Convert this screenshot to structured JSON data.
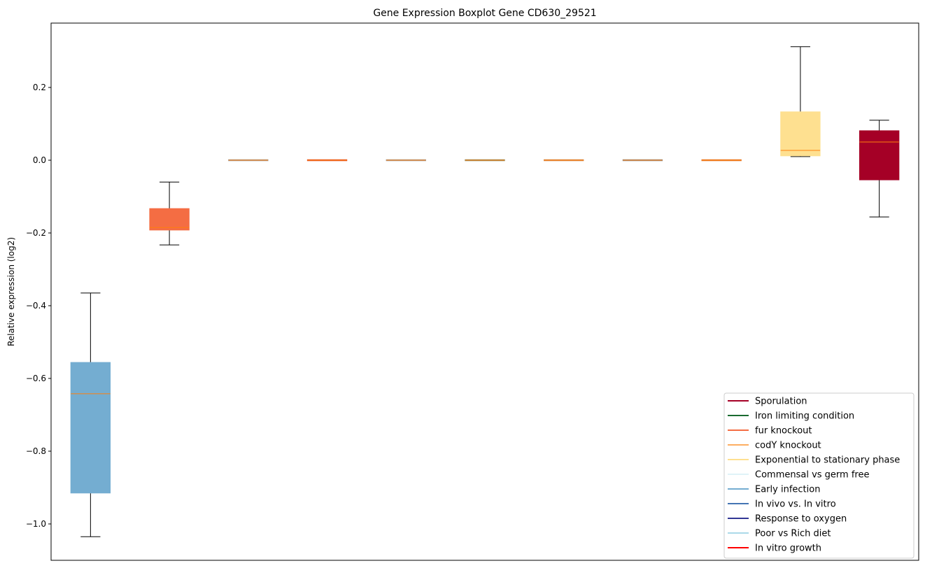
{
  "chart_data": {
    "type": "boxplot",
    "title": "Gene Expression Boxplot Gene CD630_29521",
    "xlabel": "",
    "ylabel": "Relative expression (log2)",
    "ylim": [
      -1.1,
      0.377
    ],
    "xlim": [
      0.5,
      11.5
    ],
    "yticks": [
      0.2,
      0.0,
      -0.2,
      -0.4,
      -0.6,
      -0.8,
      -1.0
    ],
    "ytick_labels": [
      "0.2",
      "0.0",
      "−0.2",
      "−0.4",
      "−0.6",
      "−0.8",
      "−1.0"
    ],
    "grid": false,
    "median_color": "#ff7f0e",
    "boxes": [
      {
        "position": 1,
        "color": "#74add1",
        "whislo": -1.035,
        "q1": -0.915,
        "med": -0.642,
        "q3": -0.556,
        "whishi": -0.365
      },
      {
        "position": 2,
        "color": "#f46d43",
        "whislo": -0.233,
        "q1": -0.192,
        "med": -0.185,
        "q3": -0.133,
        "whishi": -0.06
      },
      {
        "position": 3,
        "color": "#9e9e9e",
        "whislo": 0,
        "q1": 0,
        "med": 0,
        "q3": 0,
        "whishi": 0
      },
      {
        "position": 4,
        "color": "#e0502a",
        "whislo": 0,
        "q1": 0,
        "med": 0,
        "q3": 0,
        "whishi": 0
      },
      {
        "position": 5,
        "color": "#9e9e9e",
        "whislo": 0,
        "q1": 0,
        "med": 0,
        "q3": 0,
        "whishi": 0
      },
      {
        "position": 6,
        "color": "#8a8a60",
        "whislo": 0,
        "q1": 0,
        "med": 0,
        "q3": 0,
        "whishi": 0
      },
      {
        "position": 7,
        "color": "#d08a50",
        "whislo": 0,
        "q1": 0,
        "med": 0,
        "q3": 0,
        "whishi": 0
      },
      {
        "position": 8,
        "color": "#8e8e8e",
        "whislo": 0,
        "q1": 0,
        "med": 0,
        "q3": 0,
        "whishi": 0
      },
      {
        "position": 9,
        "color": "#e07a30",
        "whislo": 0,
        "q1": 0,
        "med": 0,
        "q3": 0,
        "whishi": 0
      },
      {
        "position": 10,
        "color": "#fee090",
        "whislo": 0.01,
        "q1": 0.012,
        "med": 0.027,
        "q3": 0.133,
        "whishi": 0.312
      },
      {
        "position": 11,
        "color": "#a50026",
        "whislo": -0.156,
        "q1": -0.054,
        "med": 0.05,
        "q3": 0.081,
        "whishi": 0.11
      }
    ],
    "legend": {
      "placement": "lower right",
      "entries": [
        {
          "label": "Sporulation",
          "color": "#a50026"
        },
        {
          "label": "Iron limiting condition",
          "color": "#1a6b30"
        },
        {
          "label": "fur knockout",
          "color": "#f46d43"
        },
        {
          "label": "codY knockout",
          "color": "#fdae61"
        },
        {
          "label": "Exponential to stationary phase",
          "color": "#fee090"
        },
        {
          "label": "Commensal vs germ free",
          "color": "#e0f3f8"
        },
        {
          "label": "Early infection",
          "color": "#74add1"
        },
        {
          "label": "In vivo vs. In vitro",
          "color": "#4575b4"
        },
        {
          "label": "Response to oxygen",
          "color": "#313695"
        },
        {
          "label": "Poor vs Rich diet",
          "color": "#abd9e9"
        },
        {
          "label": "In vitro growth",
          "color": "#ff0000"
        }
      ]
    }
  }
}
